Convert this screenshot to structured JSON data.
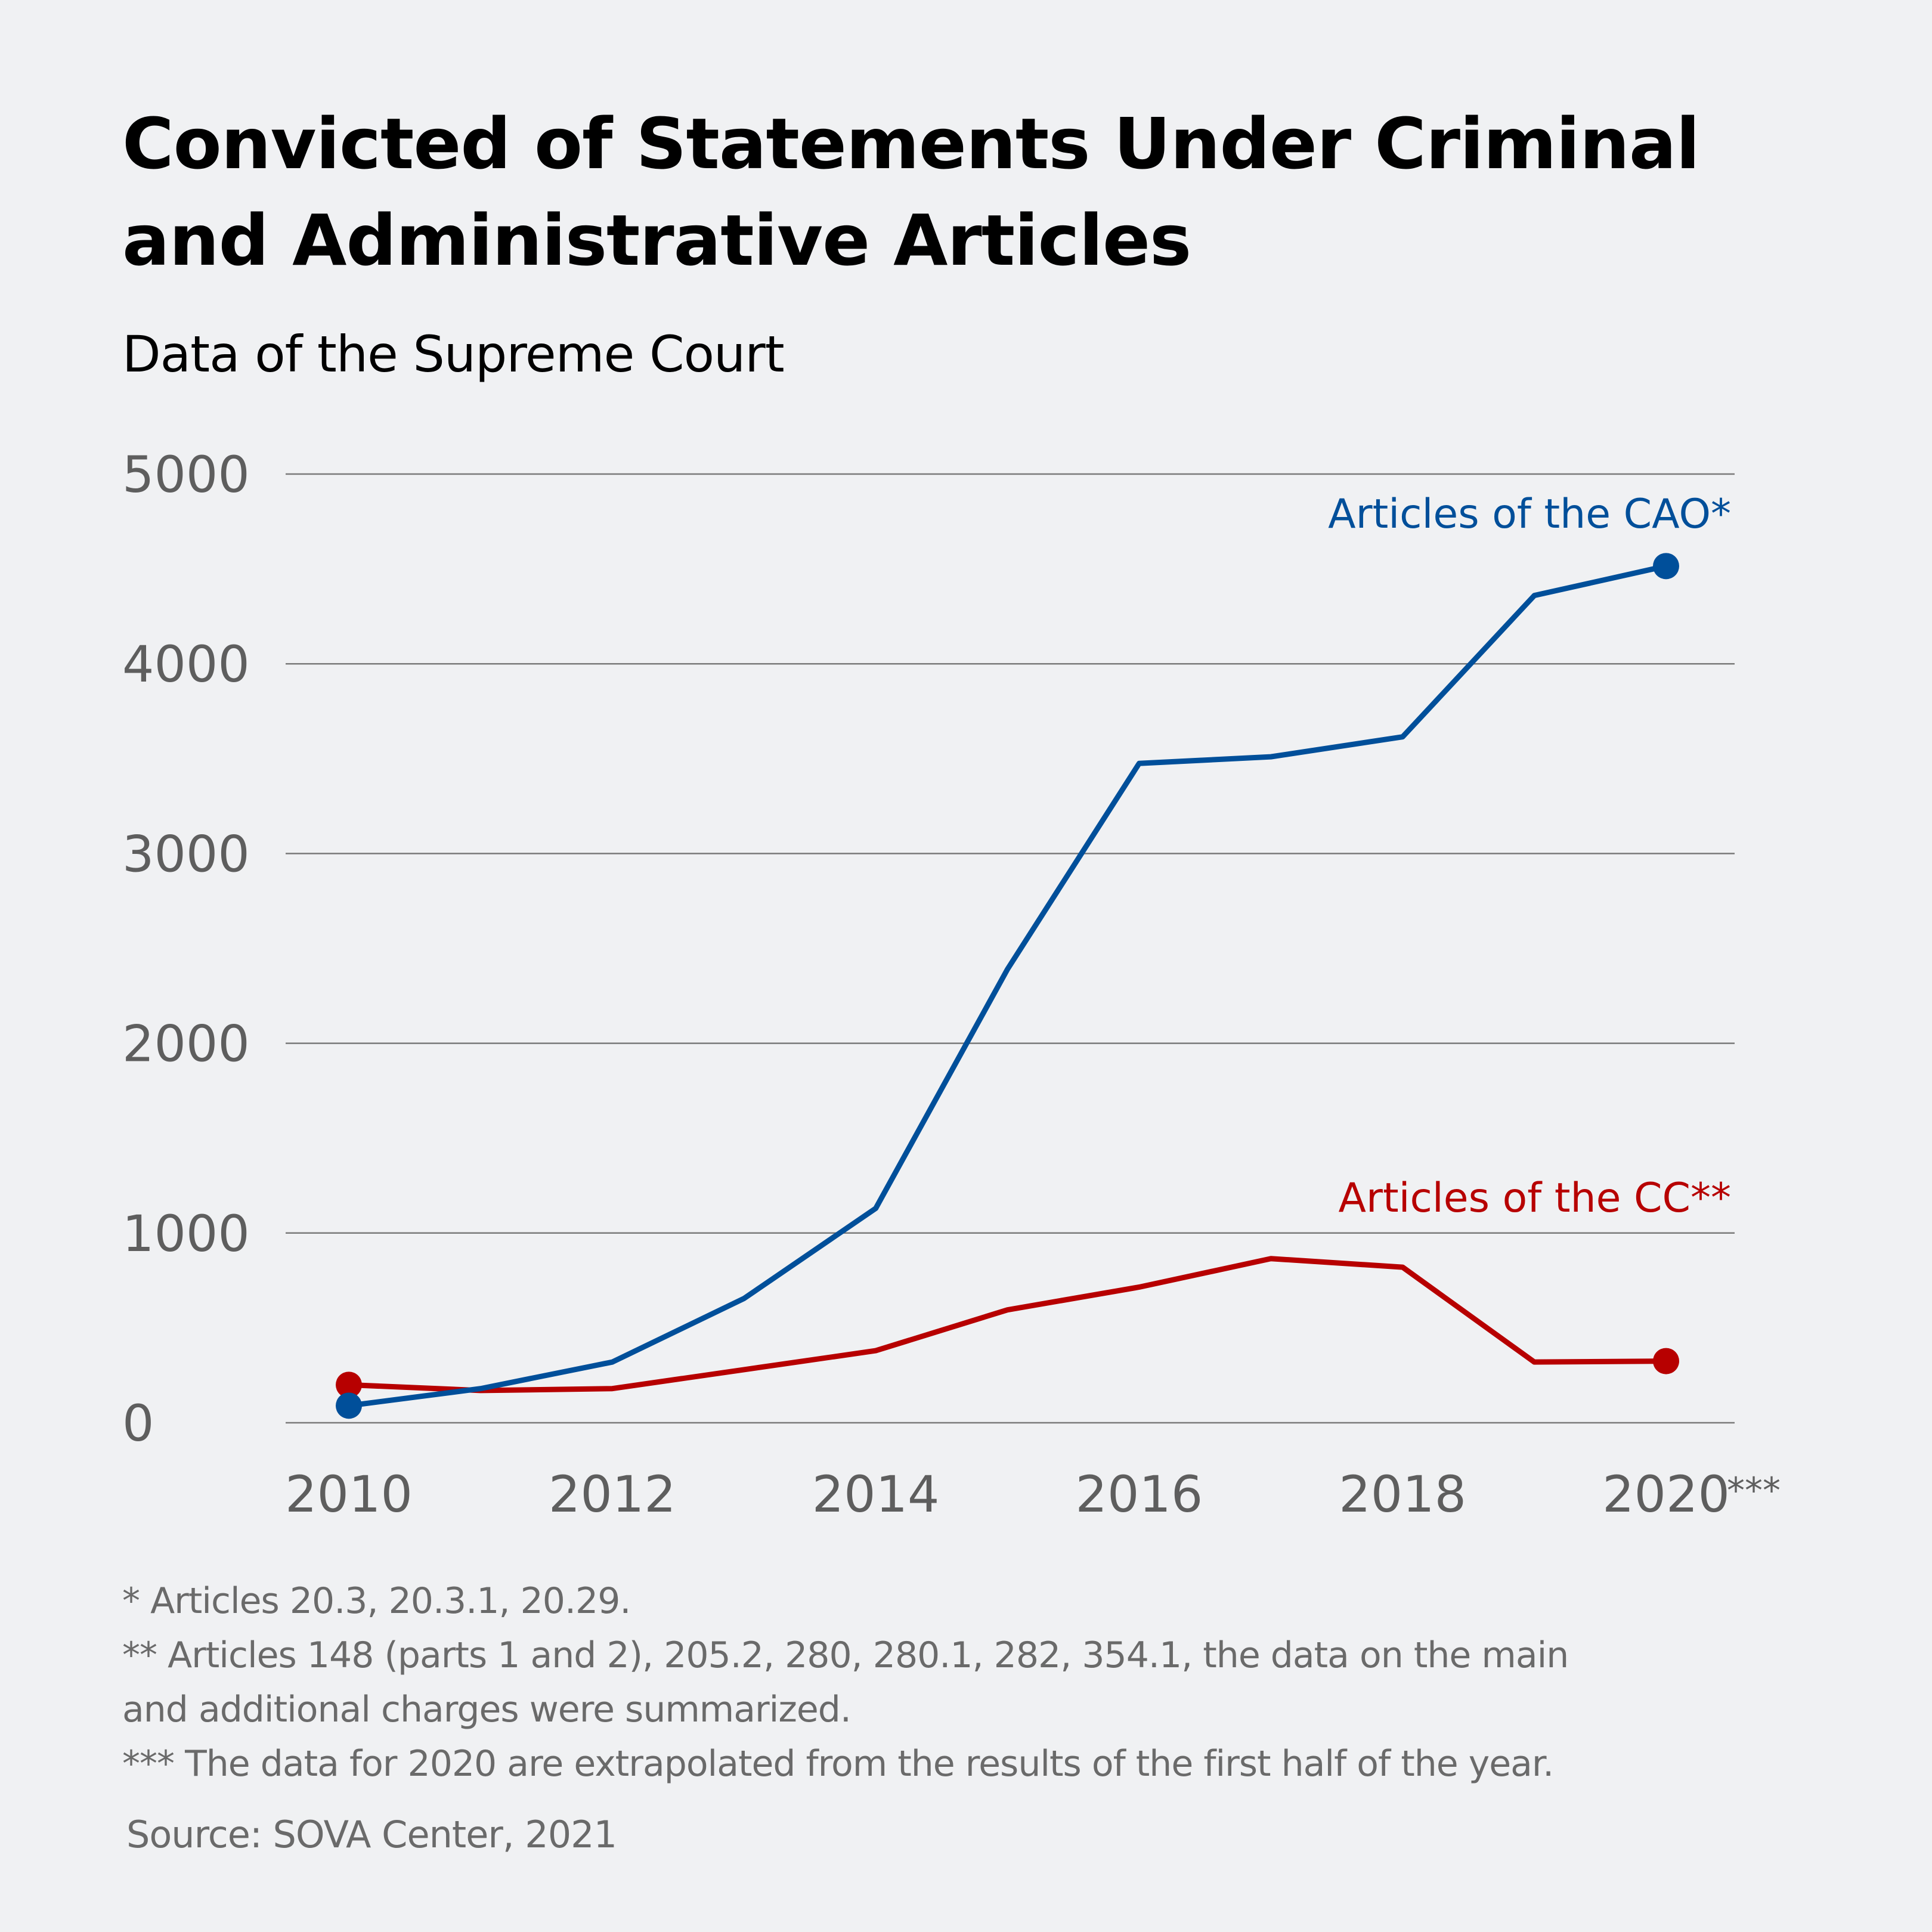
{
  "chart_data": {
    "type": "line",
    "title": "Convicted of Statements Under Criminal and Administrative Articles",
    "title_lines": [
      "Convicted of Statements Under Criminal",
      "and Administrative Articles"
    ],
    "subtitle": "Data of the Supreme Court",
    "xlabel": "",
    "ylabel": "",
    "x": [
      2010,
      2011,
      2012,
      2013,
      2014,
      2015,
      2016,
      2017,
      2018,
      2019,
      2020
    ],
    "x_tick_labels": [
      "2010",
      "2012",
      "2014",
      "2016",
      "2018",
      "2020"
    ],
    "x_tick_values": [
      2010,
      2012,
      2014,
      2016,
      2018,
      2020
    ],
    "x_tick_suffix_last": "***",
    "y_ticks": [
      0,
      1000,
      2000,
      3000,
      4000,
      5000
    ],
    "ylim": [
      0,
      5000
    ],
    "xlim": [
      2010,
      2020
    ],
    "grid": true,
    "legend": "inline-labels",
    "series": [
      {
        "name": "Articles of the CAO*",
        "color": "#004f9a",
        "values": [
          90,
          180,
          320,
          655,
          1130,
          2390,
          3475,
          3510,
          3615,
          4360,
          4515
        ]
      },
      {
        "name": "Articles of the CC**",
        "color": "#b70000",
        "values": [
          200,
          170,
          180,
          280,
          380,
          595,
          715,
          865,
          820,
          320,
          325
        ]
      }
    ]
  },
  "footnotes": [
    "* Articles 20.3, 20.3.1, 20.29.",
    "** Articles 148 (parts 1 and 2), 205.2, 280, 280.1, 282, 354.1, the data on the main",
    "and additional charges were summarized.",
    "*** The data for 2020 are extrapolated from the results of the first half of the year."
  ],
  "source": "Source: SOVA Center, 2021"
}
